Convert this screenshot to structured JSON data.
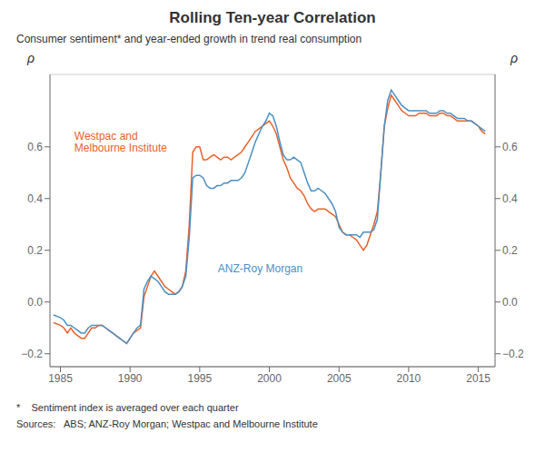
{
  "chart_data": {
    "type": "line",
    "title": "Rolling Ten-year Correlation",
    "subtitle": "Consumer sentiment* and year-ended growth in trend real consumption",
    "footnotes": [
      "*    Sentiment index is averaged over each quarter",
      "Sources:   ABS; ANZ-Roy Morgan; Westpac and Melbourne Institute"
    ],
    "ylabel": "ρ",
    "y2label": "ρ",
    "xlim": [
      1984.25,
      2016.2
    ],
    "xticks": [
      1985,
      1990,
      1995,
      2000,
      2005,
      2010,
      2015
    ],
    "ylim": [
      -0.25,
      0.88
    ],
    "yticks": [
      {
        "value": -0.2,
        "label": "−0.2"
      },
      {
        "value": 0.0,
        "label": "0.0"
      },
      0.2,
      0.4,
      0.6
    ],
    "y2lim": [
      -0.25,
      0.88
    ],
    "y2ticks": [
      {
        "value": -0.2,
        "label": "−0.2"
      },
      {
        "value": 0.0,
        "label": "0.0"
      },
      0.2,
      0.4,
      0.6
    ],
    "grid": true,
    "annotations": [
      {
        "text": "Westpac and\nMelbourne Institute",
        "x": 1986.0,
        "y": 0.62,
        "color": "#E8622A"
      },
      {
        "text": "ANZ-Roy Morgan",
        "x": 1996.3,
        "y": 0.13,
        "color": "#4A90C4"
      }
    ],
    "x": [
      1984.5,
      1985.0,
      1985.25,
      1985.5,
      1985.75,
      1986.0,
      1986.25,
      1986.5,
      1986.75,
      1987.0,
      1987.25,
      1987.5,
      1987.75,
      1988.0,
      1988.25,
      1988.5,
      1988.75,
      1989.0,
      1989.25,
      1989.5,
      1989.75,
      1990.0,
      1990.25,
      1990.5,
      1990.75,
      1991.0,
      1991.25,
      1991.5,
      1991.75,
      1992.0,
      1992.25,
      1992.5,
      1992.75,
      1993.0,
      1993.25,
      1993.5,
      1993.75,
      1994.0,
      1994.25,
      1994.5,
      1994.75,
      1995.0,
      1995.25,
      1995.5,
      1995.75,
      1996.0,
      1996.25,
      1996.5,
      1996.75,
      1997.0,
      1997.25,
      1997.5,
      1997.75,
      1998.0,
      1998.25,
      1998.5,
      1998.75,
      1999.0,
      1999.25,
      1999.5,
      1999.75,
      2000.0,
      2000.25,
      2000.5,
      2000.75,
      2001.0,
      2001.25,
      2001.5,
      2001.75,
      2002.0,
      2002.25,
      2002.5,
      2002.75,
      2003.0,
      2003.25,
      2003.5,
      2003.75,
      2004.0,
      2004.25,
      2004.5,
      2004.75,
      2005.0,
      2005.25,
      2005.5,
      2005.75,
      2006.0,
      2006.25,
      2006.5,
      2006.75,
      2007.0,
      2007.25,
      2007.5,
      2007.75,
      2008.0,
      2008.25,
      2008.5,
      2008.75,
      2009.0,
      2009.25,
      2009.5,
      2009.75,
      2010.0,
      2010.25,
      2010.5,
      2010.75,
      2011.0,
      2011.25,
      2011.5,
      2011.75,
      2012.0,
      2012.25,
      2012.5,
      2012.75,
      2013.0,
      2013.25,
      2013.5,
      2013.75,
      2014.0,
      2014.25,
      2014.5,
      2014.75,
      2015.0,
      2015.25,
      2015.5
    ],
    "series": [
      {
        "color": "#E8622A",
        "values": [
          -0.08,
          -0.09,
          -0.1,
          -0.12,
          -0.1,
          -0.12,
          -0.13,
          -0.14,
          -0.14,
          -0.12,
          -0.1,
          -0.1,
          -0.09,
          -0.09,
          -0.1,
          -0.11,
          -0.12,
          -0.13,
          -0.14,
          -0.15,
          -0.16,
          -0.14,
          -0.12,
          -0.11,
          -0.1,
          0.02,
          0.06,
          0.1,
          0.12,
          0.1,
          0.08,
          0.06,
          0.05,
          0.04,
          0.03,
          0.04,
          0.06,
          0.12,
          0.3,
          0.58,
          0.6,
          0.6,
          0.55,
          0.55,
          0.56,
          0.57,
          0.56,
          0.55,
          0.56,
          0.56,
          0.55,
          0.56,
          0.57,
          0.58,
          0.6,
          0.62,
          0.64,
          0.66,
          0.67,
          0.68,
          0.69,
          0.7,
          0.68,
          0.65,
          0.6,
          0.55,
          0.52,
          0.48,
          0.46,
          0.44,
          0.43,
          0.41,
          0.38,
          0.36,
          0.35,
          0.36,
          0.36,
          0.36,
          0.35,
          0.34,
          0.33,
          0.3,
          0.27,
          0.26,
          0.26,
          0.25,
          0.24,
          0.22,
          0.2,
          0.22,
          0.26,
          0.3,
          0.35,
          0.5,
          0.68,
          0.75,
          0.8,
          0.78,
          0.76,
          0.74,
          0.73,
          0.72,
          0.72,
          0.72,
          0.73,
          0.73,
          0.73,
          0.72,
          0.72,
          0.72,
          0.73,
          0.73,
          0.72,
          0.72,
          0.71,
          0.7,
          0.7,
          0.7,
          0.7,
          0.7,
          0.69,
          0.68,
          0.66,
          0.65
        ]
      },
      {
        "color": "#4A90C4",
        "values": [
          -0.05,
          -0.06,
          -0.07,
          -0.09,
          -0.09,
          -0.1,
          -0.11,
          -0.12,
          -0.12,
          -0.1,
          -0.09,
          -0.09,
          -0.09,
          -0.09,
          -0.1,
          -0.11,
          -0.12,
          -0.13,
          -0.14,
          -0.15,
          -0.16,
          -0.14,
          -0.12,
          -0.1,
          -0.09,
          0.05,
          0.08,
          0.1,
          0.09,
          0.08,
          0.06,
          0.04,
          0.03,
          0.03,
          0.03,
          0.04,
          0.06,
          0.1,
          0.25,
          0.48,
          0.49,
          0.49,
          0.48,
          0.45,
          0.44,
          0.44,
          0.45,
          0.45,
          0.46,
          0.46,
          0.47,
          0.47,
          0.47,
          0.48,
          0.5,
          0.54,
          0.58,
          0.62,
          0.65,
          0.68,
          0.7,
          0.73,
          0.72,
          0.68,
          0.62,
          0.57,
          0.55,
          0.55,
          0.56,
          0.55,
          0.54,
          0.5,
          0.46,
          0.43,
          0.43,
          0.44,
          0.43,
          0.42,
          0.4,
          0.38,
          0.35,
          0.29,
          0.27,
          0.26,
          0.26,
          0.26,
          0.26,
          0.25,
          0.27,
          0.27,
          0.27,
          0.28,
          0.32,
          0.5,
          0.68,
          0.78,
          0.82,
          0.8,
          0.78,
          0.76,
          0.75,
          0.74,
          0.74,
          0.74,
          0.74,
          0.74,
          0.74,
          0.73,
          0.73,
          0.73,
          0.74,
          0.74,
          0.73,
          0.73,
          0.72,
          0.71,
          0.71,
          0.71,
          0.7,
          0.7,
          0.69,
          0.68,
          0.67,
          0.66
        ]
      }
    ]
  }
}
